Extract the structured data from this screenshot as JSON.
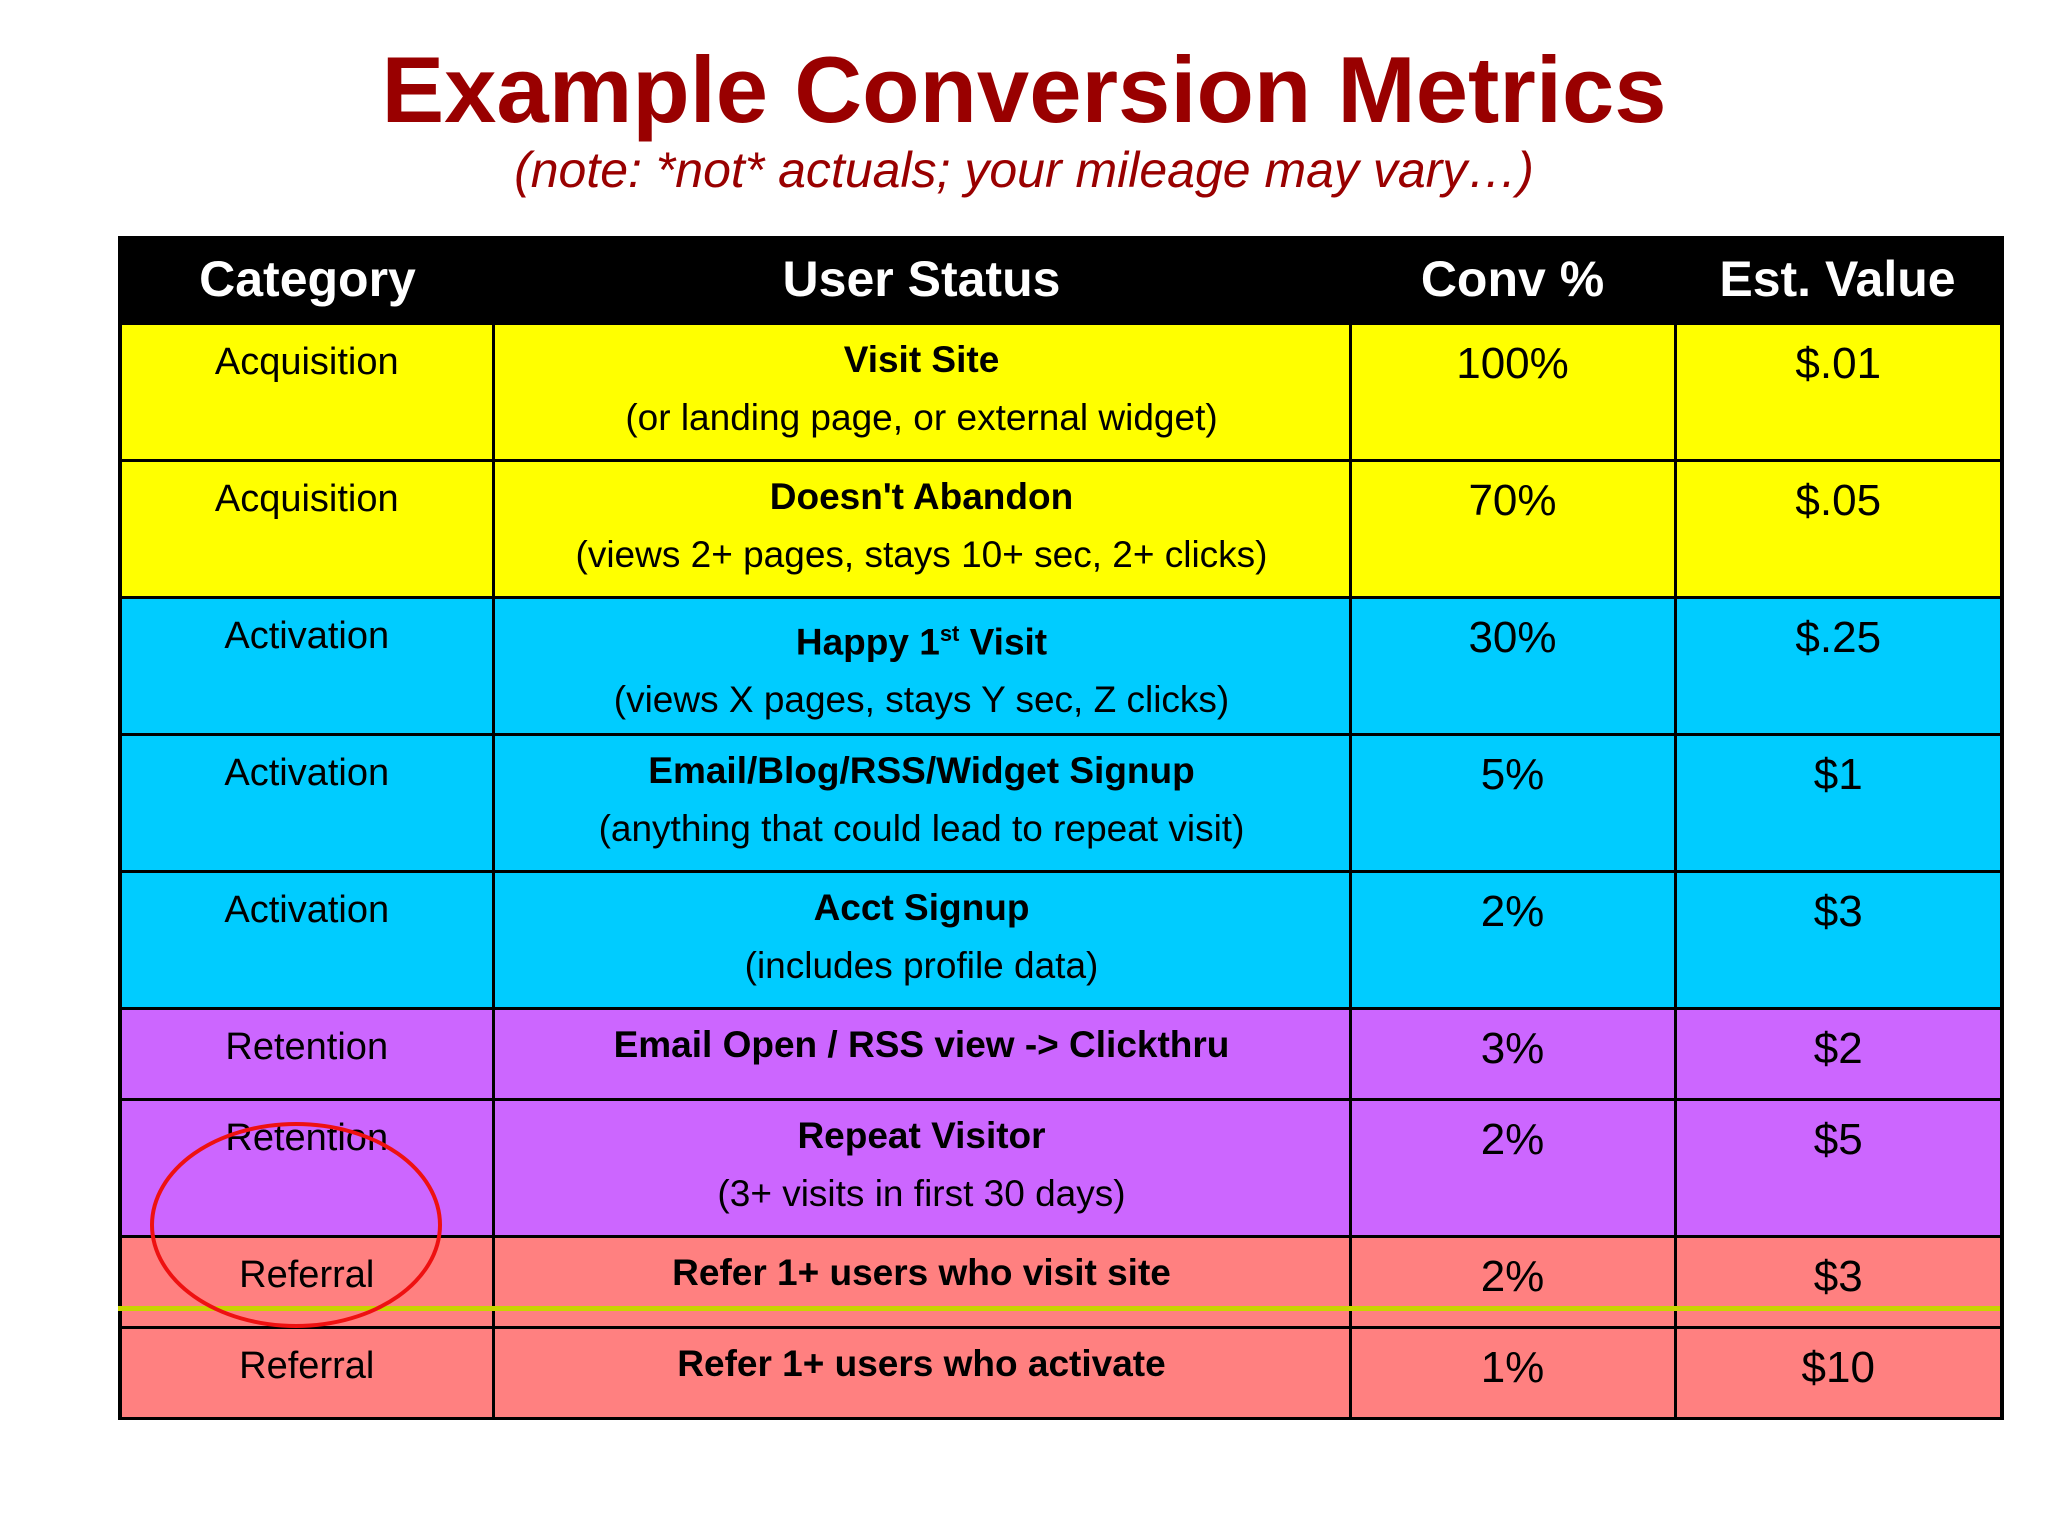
{
  "title": "Example Conversion Metrics",
  "subtitle": "(note: *not* actuals; your mileage may vary…)",
  "table": {
    "headers": [
      "Category",
      "User Status",
      "Conv %",
      "Est. Value"
    ],
    "rows": [
      {
        "category": "Acquisition",
        "status": "Visit Site",
        "status_detail": "(or landing page, or external widget)",
        "conv": "100%",
        "value": "$.01",
        "color": "#ffff00"
      },
      {
        "category": "Acquisition",
        "status": "Doesn't Abandon",
        "status_detail": "(views 2+ pages, stays 10+ sec, 2+ clicks)",
        "conv": "70%",
        "value": "$.05",
        "color": "#ffff00"
      },
      {
        "category": "Activation",
        "status_prefix": "Happy 1",
        "status_sup": "st",
        "status_suffix": " Visit",
        "status_detail": "(views X pages, stays Y sec, Z clicks)",
        "conv": "30%",
        "value": "$.25",
        "color": "#00ccff"
      },
      {
        "category": "Activation",
        "status": "Email/Blog/RSS/Widget Signup",
        "status_detail": "(anything that could lead to repeat visit)",
        "conv": "5%",
        "value": "$1",
        "color": "#00ccff"
      },
      {
        "category": "Activation",
        "status": "Acct Signup",
        "status_detail": "(includes profile data)",
        "conv": "2%",
        "value": "$3",
        "color": "#00ccff"
      },
      {
        "category": "Retention",
        "status": "Email Open / RSS view -> Clickthru",
        "status_detail": "",
        "conv": "3%",
        "value": "$2",
        "color": "#cc66ff"
      },
      {
        "category": "Retention",
        "status": "Repeat Visitor",
        "status_detail": "(3+ visits in first 30 days)",
        "conv": "2%",
        "value": "$5",
        "color": "#cc66ff"
      },
      {
        "category": "Referral",
        "status": "Refer 1+ users who visit site",
        "status_detail": "",
        "conv": "2%",
        "value": "$3",
        "color": "#ff8080"
      },
      {
        "category": "Referral",
        "status": "Refer 1+ users who activate",
        "status_detail": "",
        "conv": "1%",
        "value": "$10",
        "color": "#ff8080"
      }
    ]
  },
  "annotation": {
    "circled_rows": [
      "Referral",
      "Referral"
    ],
    "color": "#ee1111"
  }
}
